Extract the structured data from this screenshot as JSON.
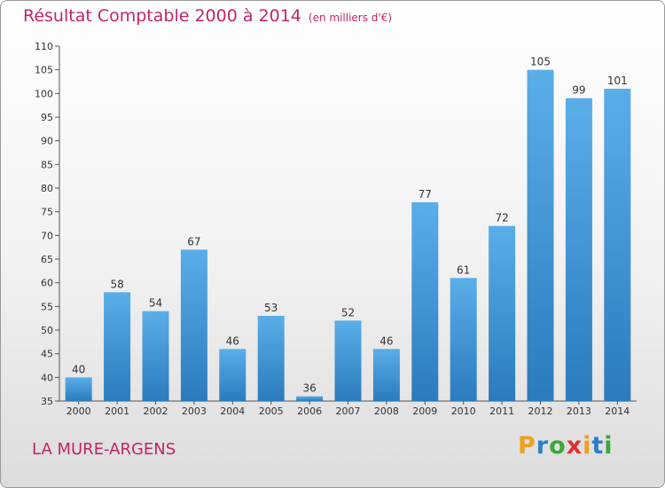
{
  "header": {
    "title": "Résultat Comptable 2000 à 2014",
    "subtitle": "(en milliers d'€)"
  },
  "commune": "LA MURE-ARGENS",
  "logo": {
    "letters": [
      "P",
      "r",
      "o",
      "x",
      "i",
      "t",
      "i"
    ],
    "colors": [
      "#f0a020",
      "#2a7fc8",
      "#3aa83a",
      "#e03030",
      "#f0a020",
      "#2a7fc8",
      "#3aa83a"
    ]
  },
  "colors": {
    "bar_light": "#5aaee8",
    "bar_dark": "#2b7bbd",
    "title": "#c0256a"
  },
  "chart_data": {
    "type": "bar",
    "title": "Résultat Comptable 2000 à 2014",
    "xlabel": "",
    "ylabel": "",
    "ylim": [
      35,
      110
    ],
    "yticks": [
      35,
      40,
      45,
      50,
      55,
      60,
      65,
      70,
      75,
      80,
      85,
      90,
      95,
      100,
      105,
      110
    ],
    "grid": false,
    "categories": [
      "2000",
      "2001",
      "2002",
      "2003",
      "2004",
      "2005",
      "2006",
      "2007",
      "2008",
      "2009",
      "2010",
      "2011",
      "2012",
      "2013",
      "2014"
    ],
    "values": [
      40,
      58,
      54,
      67,
      46,
      53,
      36,
      52,
      46,
      77,
      61,
      72,
      105,
      99,
      101
    ]
  }
}
